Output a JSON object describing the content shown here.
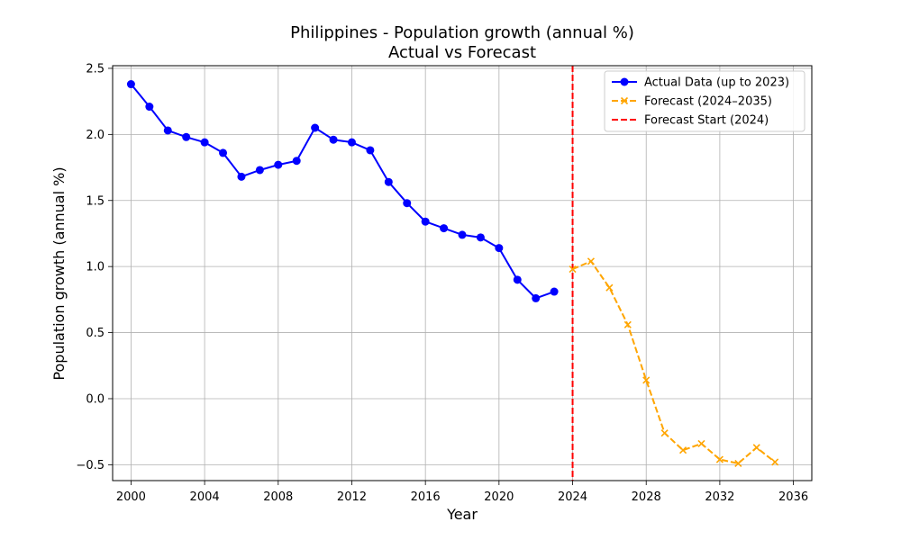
{
  "chart_data": {
    "type": "line",
    "title": "Philippines - Population growth (annual %)",
    "subtitle": "Actual vs Forecast",
    "xlabel": "Year",
    "ylabel": "Population growth (annual %)",
    "xlim": [
      1999,
      2037
    ],
    "ylim": [
      -0.62,
      2.52
    ],
    "xticks": [
      2000,
      2004,
      2008,
      2012,
      2016,
      2020,
      2024,
      2028,
      2032,
      2036
    ],
    "yticks": [
      -0.5,
      0.0,
      0.5,
      1.0,
      1.5,
      2.0,
      2.5
    ],
    "ytick_labels": [
      "−0.5",
      "0.0",
      "0.5",
      "1.0",
      "1.5",
      "2.0",
      "2.5"
    ],
    "grid": true,
    "legend_position": "top-right",
    "series": [
      {
        "name": "Actual Data (up to 2023)",
        "color": "#0000ff",
        "line_style": "solid",
        "marker": "circle",
        "x": [
          2000,
          2001,
          2002,
          2003,
          2004,
          2005,
          2006,
          2007,
          2008,
          2009,
          2010,
          2011,
          2012,
          2013,
          2014,
          2015,
          2016,
          2017,
          2018,
          2019,
          2020,
          2021,
          2022,
          2023
        ],
        "y": [
          2.38,
          2.21,
          2.03,
          1.98,
          1.94,
          1.86,
          1.68,
          1.73,
          1.77,
          1.8,
          2.05,
          1.96,
          1.94,
          1.88,
          1.64,
          1.48,
          1.34,
          1.29,
          1.24,
          1.22,
          1.14,
          0.9,
          0.76,
          0.81
        ]
      },
      {
        "name": "Forecast (2024–2035)",
        "color": "#ffa500",
        "line_style": "dashed",
        "marker": "x",
        "x": [
          2024,
          2025,
          2026,
          2027,
          2028,
          2029,
          2030,
          2031,
          2032,
          2033,
          2034,
          2035
        ],
        "y": [
          0.98,
          1.04,
          0.84,
          0.56,
          0.14,
          -0.26,
          -0.39,
          -0.34,
          -0.46,
          -0.49,
          -0.37,
          -0.48
        ]
      }
    ],
    "vlines": [
      {
        "name": "Forecast Start (2024)",
        "x": 2024,
        "color": "#ff0000",
        "line_style": "dashed"
      }
    ]
  }
}
